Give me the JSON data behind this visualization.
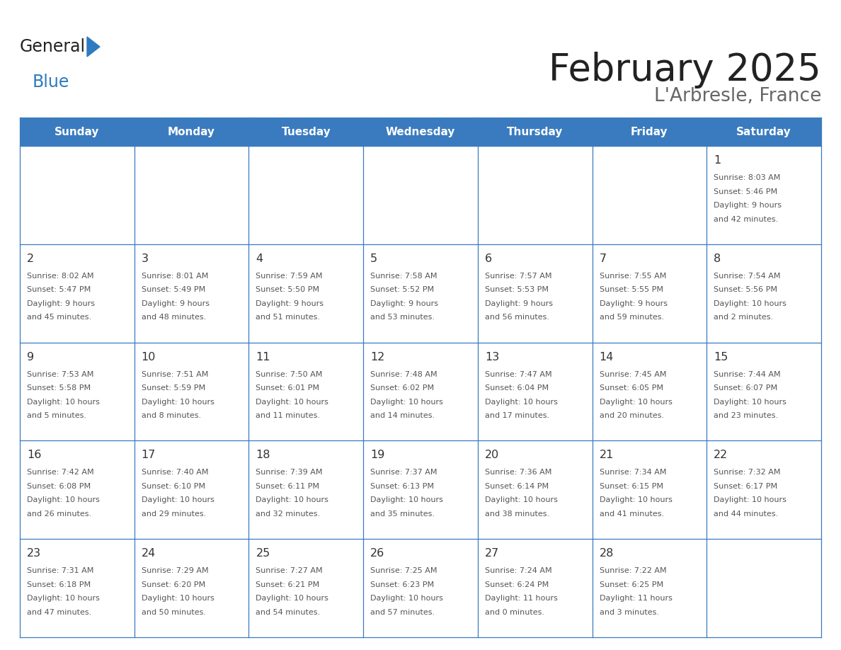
{
  "title": "February 2025",
  "subtitle": "L'Arbresle, France",
  "header_bg": "#3a7bbf",
  "header_text": "#ffffff",
  "cell_bg": "#ffffff",
  "border_color": "#3a7bbf",
  "day_names": [
    "Sunday",
    "Monday",
    "Tuesday",
    "Wednesday",
    "Thursday",
    "Friday",
    "Saturday"
  ],
  "title_color": "#222222",
  "subtitle_color": "#666666",
  "logo_general_color": "#222222",
  "logo_blue_color": "#2e7bbf",
  "calendar": [
    [
      null,
      null,
      null,
      null,
      null,
      null,
      {
        "day": 1,
        "sunrise": "8:03 AM",
        "sunset": "5:46 PM",
        "daylight": "9 hours and 42 minutes."
      }
    ],
    [
      {
        "day": 2,
        "sunrise": "8:02 AM",
        "sunset": "5:47 PM",
        "daylight": "9 hours and 45 minutes."
      },
      {
        "day": 3,
        "sunrise": "8:01 AM",
        "sunset": "5:49 PM",
        "daylight": "9 hours and 48 minutes."
      },
      {
        "day": 4,
        "sunrise": "7:59 AM",
        "sunset": "5:50 PM",
        "daylight": "9 hours and 51 minutes."
      },
      {
        "day": 5,
        "sunrise": "7:58 AM",
        "sunset": "5:52 PM",
        "daylight": "9 hours and 53 minutes."
      },
      {
        "day": 6,
        "sunrise": "7:57 AM",
        "sunset": "5:53 PM",
        "daylight": "9 hours and 56 minutes."
      },
      {
        "day": 7,
        "sunrise": "7:55 AM",
        "sunset": "5:55 PM",
        "daylight": "9 hours and 59 minutes."
      },
      {
        "day": 8,
        "sunrise": "7:54 AM",
        "sunset": "5:56 PM",
        "daylight": "10 hours and 2 minutes."
      }
    ],
    [
      {
        "day": 9,
        "sunrise": "7:53 AM",
        "sunset": "5:58 PM",
        "daylight": "10 hours and 5 minutes."
      },
      {
        "day": 10,
        "sunrise": "7:51 AM",
        "sunset": "5:59 PM",
        "daylight": "10 hours and 8 minutes."
      },
      {
        "day": 11,
        "sunrise": "7:50 AM",
        "sunset": "6:01 PM",
        "daylight": "10 hours and 11 minutes."
      },
      {
        "day": 12,
        "sunrise": "7:48 AM",
        "sunset": "6:02 PM",
        "daylight": "10 hours and 14 minutes."
      },
      {
        "day": 13,
        "sunrise": "7:47 AM",
        "sunset": "6:04 PM",
        "daylight": "10 hours and 17 minutes."
      },
      {
        "day": 14,
        "sunrise": "7:45 AM",
        "sunset": "6:05 PM",
        "daylight": "10 hours and 20 minutes."
      },
      {
        "day": 15,
        "sunrise": "7:44 AM",
        "sunset": "6:07 PM",
        "daylight": "10 hours and 23 minutes."
      }
    ],
    [
      {
        "day": 16,
        "sunrise": "7:42 AM",
        "sunset": "6:08 PM",
        "daylight": "10 hours and 26 minutes."
      },
      {
        "day": 17,
        "sunrise": "7:40 AM",
        "sunset": "6:10 PM",
        "daylight": "10 hours and 29 minutes."
      },
      {
        "day": 18,
        "sunrise": "7:39 AM",
        "sunset": "6:11 PM",
        "daylight": "10 hours and 32 minutes."
      },
      {
        "day": 19,
        "sunrise": "7:37 AM",
        "sunset": "6:13 PM",
        "daylight": "10 hours and 35 minutes."
      },
      {
        "day": 20,
        "sunrise": "7:36 AM",
        "sunset": "6:14 PM",
        "daylight": "10 hours and 38 minutes."
      },
      {
        "day": 21,
        "sunrise": "7:34 AM",
        "sunset": "6:15 PM",
        "daylight": "10 hours and 41 minutes."
      },
      {
        "day": 22,
        "sunrise": "7:32 AM",
        "sunset": "6:17 PM",
        "daylight": "10 hours and 44 minutes."
      }
    ],
    [
      {
        "day": 23,
        "sunrise": "7:31 AM",
        "sunset": "6:18 PM",
        "daylight": "10 hours and 47 minutes."
      },
      {
        "day": 24,
        "sunrise": "7:29 AM",
        "sunset": "6:20 PM",
        "daylight": "10 hours and 50 minutes."
      },
      {
        "day": 25,
        "sunrise": "7:27 AM",
        "sunset": "6:21 PM",
        "daylight": "10 hours and 54 minutes."
      },
      {
        "day": 26,
        "sunrise": "7:25 AM",
        "sunset": "6:23 PM",
        "daylight": "10 hours and 57 minutes."
      },
      {
        "day": 27,
        "sunrise": "7:24 AM",
        "sunset": "6:24 PM",
        "daylight": "11 hours and 0 minutes."
      },
      {
        "day": 28,
        "sunrise": "7:22 AM",
        "sunset": "6:25 PM",
        "daylight": "11 hours and 3 minutes."
      },
      null
    ]
  ]
}
